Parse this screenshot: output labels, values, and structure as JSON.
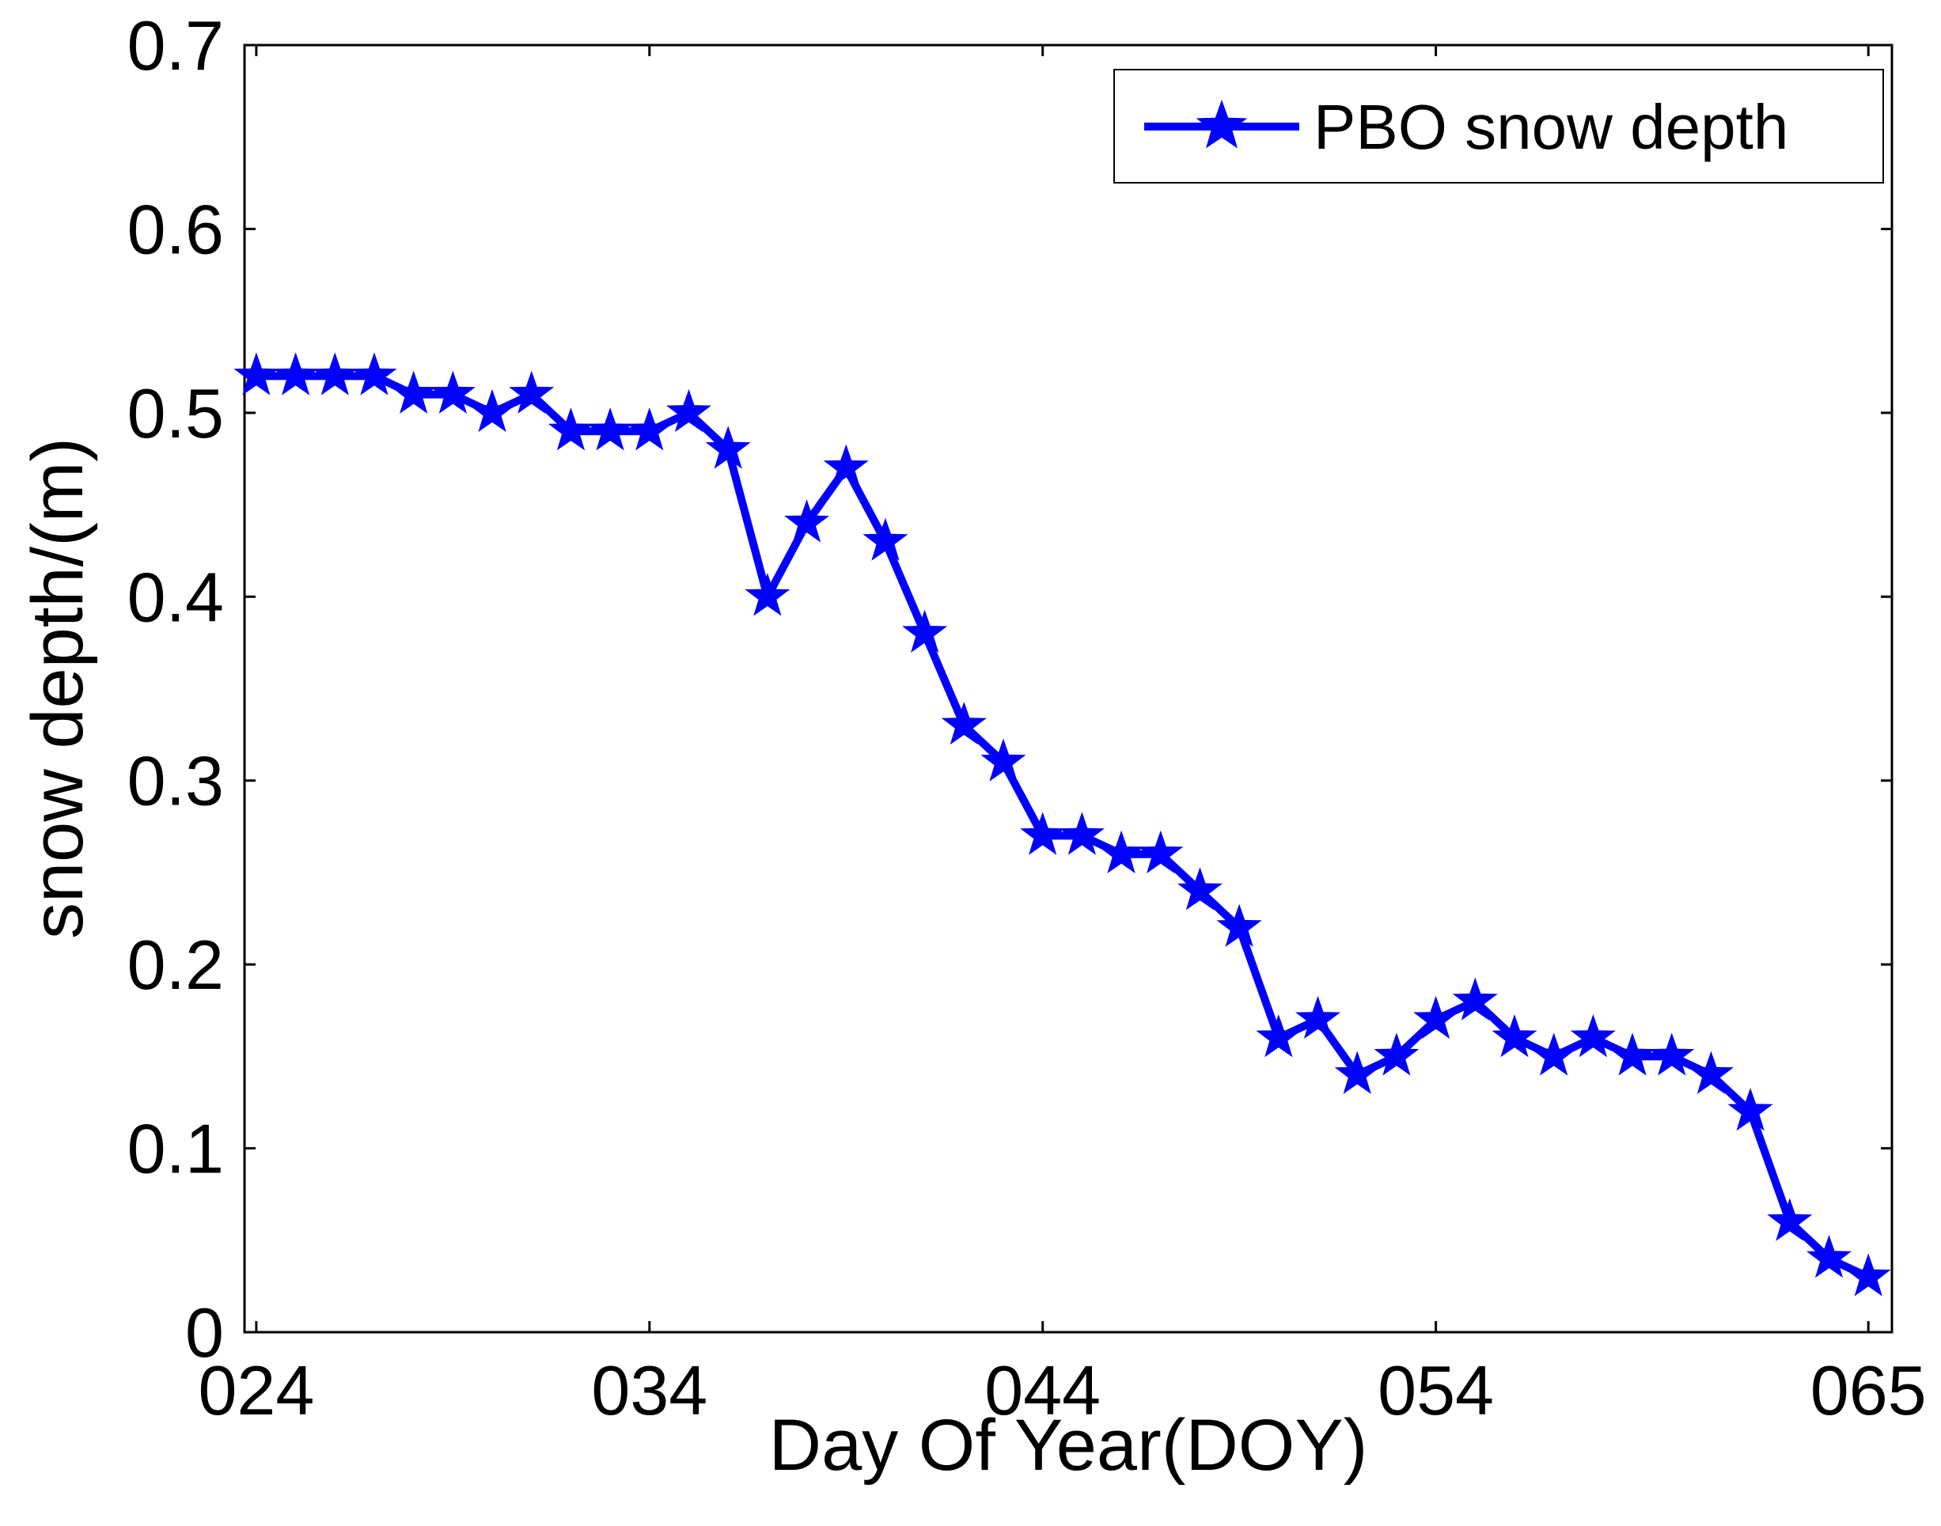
{
  "chart_data": {
    "type": "line",
    "xlabel": "Day Of Year(DOY)",
    "ylabel": "snow depth/(m)",
    "xlim": [
      23.7,
      65.6
    ],
    "ylim": [
      0,
      0.7
    ],
    "x_ticks": [
      24,
      34,
      44,
      54,
      65
    ],
    "x_tick_labels": [
      "024",
      "034",
      "044",
      "054",
      "065"
    ],
    "y_ticks": [
      0,
      0.1,
      0.2,
      0.3,
      0.4,
      0.5,
      0.6,
      0.7
    ],
    "y_tick_labels": [
      "0",
      "0.1",
      "0.2",
      "0.3",
      "0.4",
      "0.5",
      "0.6",
      "0.7"
    ],
    "grid": false,
    "legend_position": "top-right",
    "series": [
      {
        "name": "PBO snow depth",
        "color": "#0000ff",
        "marker": "star",
        "x": [
          24,
          25,
          26,
          27,
          28,
          29,
          30,
          31,
          32,
          33,
          34,
          35,
          36,
          37,
          38,
          39,
          40,
          41,
          42,
          43,
          44,
          45,
          46,
          47,
          48,
          49,
          50,
          51,
          52,
          53,
          54,
          55,
          56,
          57,
          58,
          59,
          60,
          61,
          62,
          63,
          64,
          65
        ],
        "y": [
          0.52,
          0.52,
          0.52,
          0.52,
          0.51,
          0.51,
          0.5,
          0.51,
          0.49,
          0.49,
          0.49,
          0.5,
          0.48,
          0.4,
          0.44,
          0.47,
          0.43,
          0.38,
          0.33,
          0.31,
          0.27,
          0.27,
          0.26,
          0.26,
          0.24,
          0.22,
          0.16,
          0.17,
          0.14,
          0.15,
          0.17,
          0.18,
          0.16,
          0.15,
          0.16,
          0.15,
          0.15,
          0.14,
          0.12,
          0.06,
          0.04,
          0.03
        ]
      }
    ]
  }
}
